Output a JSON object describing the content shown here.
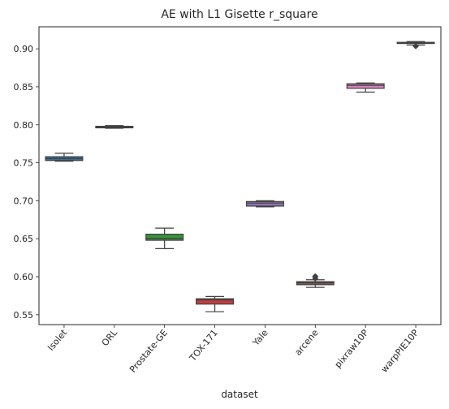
{
  "chart_data": {
    "type": "box",
    "title": "AE with L1 Gisette r_square",
    "xlabel": "dataset",
    "ylabel": "",
    "ylim": [
      0.537,
      0.929
    ],
    "yticks": [
      0.55,
      0.6,
      0.65,
      0.7,
      0.75,
      0.8,
      0.85,
      0.9
    ],
    "ytick_labels": [
      "0.55",
      "0.60",
      "0.65",
      "0.70",
      "0.75",
      "0.80",
      "0.85",
      "0.90"
    ],
    "categories": [
      "Isolet",
      "ORL",
      "Prostate-GE",
      "TOX-171",
      "Yale",
      "arcene",
      "pixraw10P",
      "warpPIE10P"
    ],
    "grid": false,
    "boxes": [
      {
        "category": "Isolet",
        "whisker_low": 0.752,
        "q1": 0.753,
        "median": 0.7555,
        "q3": 0.758,
        "whisker_high": 0.7625,
        "outliers": [],
        "color": "#3b6c98"
      },
      {
        "category": "ORL",
        "whisker_low": 0.7955,
        "q1": 0.796,
        "median": 0.797,
        "q3": 0.798,
        "whisker_high": 0.799,
        "outliers": [],
        "color": "#c47c3e"
      },
      {
        "category": "Prostate-GE",
        "whisker_low": 0.637,
        "q1": 0.648,
        "median": 0.6505,
        "q3": 0.656,
        "whisker_high": 0.664,
        "outliers": [],
        "color": "#3a923a"
      },
      {
        "category": "TOX-171",
        "whisker_low": 0.554,
        "q1": 0.564,
        "median": 0.5695,
        "q3": 0.571,
        "whisker_high": 0.574,
        "outliers": [],
        "color": "#c03d3e"
      },
      {
        "category": "Yale",
        "whisker_low": 0.692,
        "q1": 0.693,
        "median": 0.697,
        "q3": 0.699,
        "whisker_high": 0.7,
        "outliers": [],
        "color": "#9372b2"
      },
      {
        "category": "arcene",
        "whisker_low": 0.586,
        "q1": 0.5895,
        "median": 0.592,
        "q3": 0.5935,
        "whisker_high": 0.596,
        "outliers": [
          0.598,
          0.6005
        ],
        "color": "#845b53"
      },
      {
        "category": "pixraw10P",
        "whisker_low": 0.843,
        "q1": 0.848,
        "median": 0.852,
        "q3": 0.854,
        "whisker_high": 0.855,
        "outliers": [],
        "color": "#d684bd"
      },
      {
        "category": "warpPIE10P",
        "whisker_low": 0.905,
        "q1": 0.907,
        "median": 0.908,
        "q3": 0.9085,
        "whisker_high": 0.9095,
        "outliers": [
          0.9035
        ],
        "color": "#7f7f7f"
      }
    ]
  }
}
